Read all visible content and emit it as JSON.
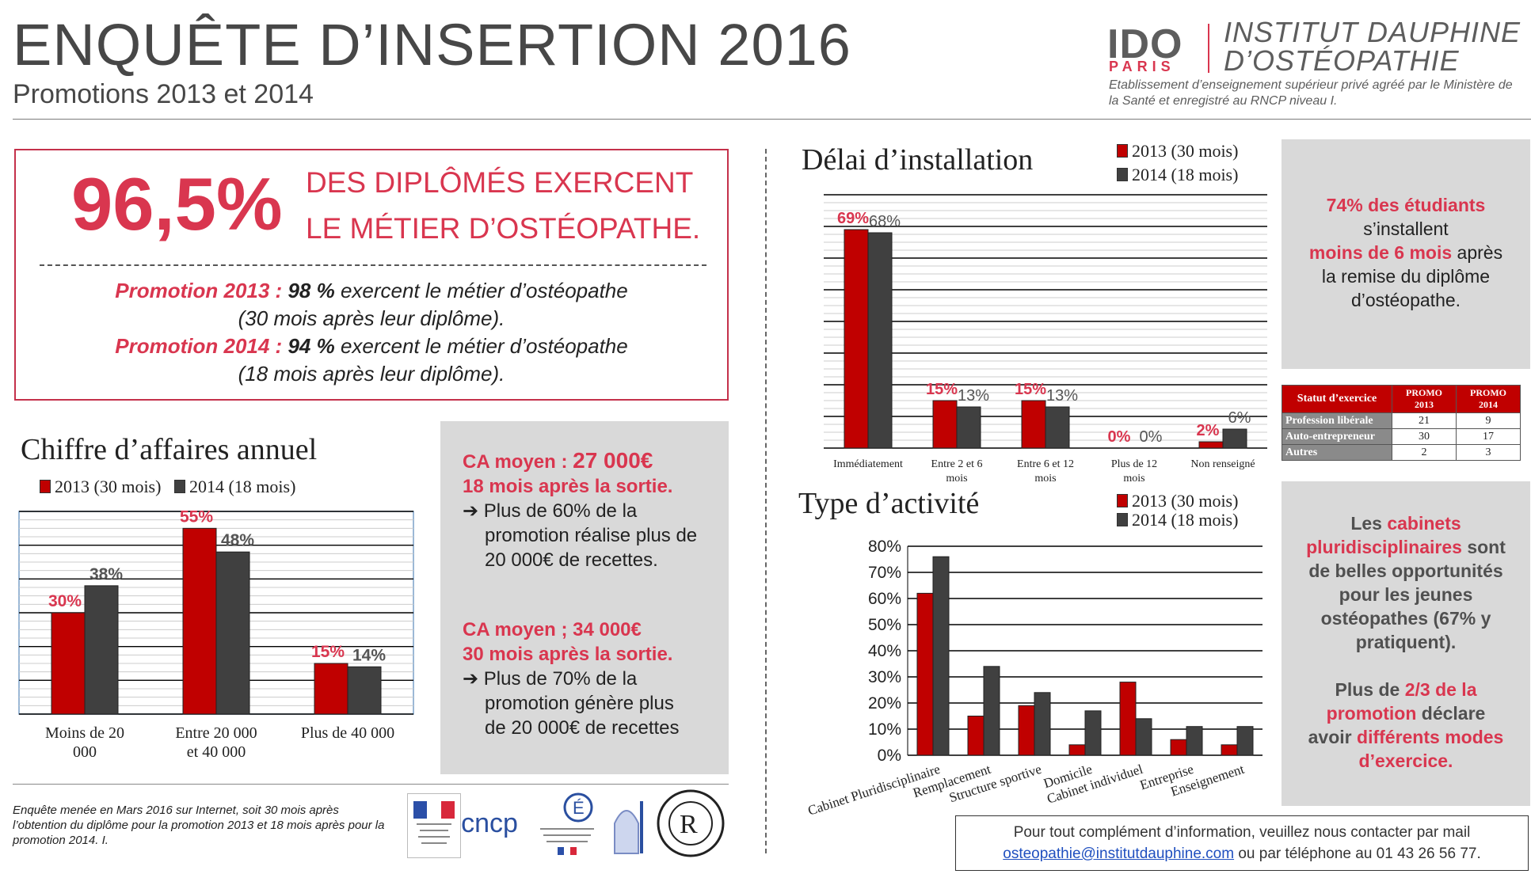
{
  "header": {
    "title": "ENQUÊTE D’INSERTION 2016",
    "subtitle": "Promotions 2013 et 2014",
    "logo_ido": "IDO",
    "logo_paris": "PARIS",
    "logo_line1": "INSTITUT DAUPHINE",
    "logo_line2": "D’OSTÉOPATHIE",
    "logo_caption": "Etablissement d’enseignement supérieur privé agréé par le Ministère de la Santé et enregistré au RNCP niveau I."
  },
  "headline": {
    "percent": "96,5%",
    "line1": "DES DIPLÔMÉS EXERCENT",
    "line2": "LE MÉTIER D’OSTÉOPATHE.",
    "promo2013_label": "Promotion 2013 :",
    "promo2013_value": "98 %",
    "promo2013_text": " exercent le métier d’ostéopathe",
    "promo2013_note": "(30 mois après leur diplôme).",
    "promo2014_label": "Promotion 2014 :",
    "promo2014_value": "94 %",
    "promo2014_text": " exercent le métier d’ostéopathe",
    "promo2014_note": "(18 mois après leur diplôme)."
  },
  "ca_box": {
    "b1_label": "CA moyen : ",
    "b1_value": "27 000€",
    "b1_sub": "18 mois après la sortie.",
    "b1_arrow": "➔ Plus de 60% de la",
    "b1_l2": "promotion réalise plus de",
    "b1_l3": "20 000€ de recettes.",
    "b2_label": "CA moyen ; 34 000€",
    "b2_sub": "30 mois après la sortie.",
    "b2_arrow": "➔ Plus de 70% de la",
    "b2_l2": "promotion génère plus",
    "b2_l3": "de 20 000€ de recettes"
  },
  "delai_box": {
    "l1": "74% des étudiants",
    "l2": "s’installent",
    "l3a": "moins de 6 mois",
    "l3b": " après",
    "l4": "la remise du diplôme",
    "l5": "d’ostéopathe."
  },
  "type_box": {
    "l1a": "Les ",
    "l1b": "cabinets",
    "l2a": "pluridisciplinaires",
    "l2b": " sont",
    "l3": "de belles opportunités",
    "l4": "pour les jeunes",
    "l5": "ostéopathes (67% y",
    "l6": "pratiquent).",
    "l7a": "Plus de ",
    "l7b": "2/3 de la",
    "l8a": "promotion",
    "l8b": " déclare",
    "l9a": "avoir ",
    "l9b": "différents modes",
    "l10": "d’exercice."
  },
  "table": {
    "headers": [
      "Statut d’exercice",
      "PROMO 2013",
      "PROMO 2014"
    ],
    "rows": [
      {
        "label": "Profession libérale",
        "v2013": "21",
        "v2014": "9"
      },
      {
        "label": "Auto-entrepreneur",
        "v2013": "30",
        "v2014": "17"
      },
      {
        "label": "Autres",
        "v2013": "2",
        "v2014": "3"
      }
    ]
  },
  "footer": {
    "note": "Enquête menée en Mars 2016 sur Internet, soit 30 mois après l’obtention du diplôme pour la promotion 2013 et 18 mois après pour la promotion 2014. I.",
    "logo_cncp": "cncp",
    "contact_line1": "Pour tout complément d’information, veuillez nous contacter par mail",
    "contact_mail": "osteopathie@institutdauphine.com",
    "contact_line2": " ou par téléphone au 01 43 26 56 77."
  },
  "colors": {
    "s2013": "#c00000",
    "s2014": "#404040",
    "accent": "#d9364f"
  },
  "chart_data": [
    {
      "id": "chiffre",
      "type": "bar",
      "title": "Chiffre d’affaires annuel",
      "categories": [
        "Moins de 20 000",
        "Entre 20 000 et 40 000",
        "Plus de 40 000"
      ],
      "series": [
        {
          "name": "2013 (30 mois)",
          "values": [
            30,
            55,
            15
          ],
          "labels": [
            "30%",
            "55%",
            "15%"
          ]
        },
        {
          "name": "2014 (18 mois)",
          "values": [
            38,
            48,
            14
          ],
          "labels": [
            "38%",
            "48%",
            "14%"
          ]
        }
      ],
      "ylim": [
        0,
        60
      ],
      "legend": "top"
    },
    {
      "id": "delai",
      "type": "bar",
      "title": "Délai d’installation",
      "categories": [
        "Immédiatement",
        "Entre 2 et 6 mois",
        "Entre 6 et 12 mois",
        "Plus de 12 mois",
        "Non renseigné"
      ],
      "series": [
        {
          "name": "2013 (30 mois)",
          "values": [
            69,
            15,
            15,
            0,
            2
          ],
          "labels": [
            "69%",
            "15%",
            "15%",
            "0%",
            "2%"
          ]
        },
        {
          "name": "2014 (18 mois)",
          "values": [
            68,
            13,
            13,
            0,
            6
          ],
          "labels": [
            "68%",
            "13%",
            "13%",
            "0%",
            "6%"
          ]
        }
      ],
      "ylim": [
        0,
        80
      ],
      "legend": "top-right"
    },
    {
      "id": "type",
      "type": "bar",
      "title": "Type d’activité",
      "categories": [
        "Cabinet Pluridisciplinaire",
        "Remplacement",
        "Structure sportive",
        "Domicile",
        "Cabinet individuel",
        "Entreprise",
        "Enseignement"
      ],
      "series": [
        {
          "name": "2013 (30 mois)",
          "values": [
            62,
            15,
            19,
            4,
            28,
            6,
            4
          ]
        },
        {
          "name": "2014 (18 mois)",
          "values": [
            76,
            34,
            24,
            17,
            14,
            11,
            11
          ]
        }
      ],
      "yticks": [
        "0%",
        "10%",
        "20%",
        "30%",
        "40%",
        "50%",
        "60%",
        "70%",
        "80%"
      ],
      "ylim": [
        0,
        80
      ],
      "legend": "top-right"
    }
  ]
}
